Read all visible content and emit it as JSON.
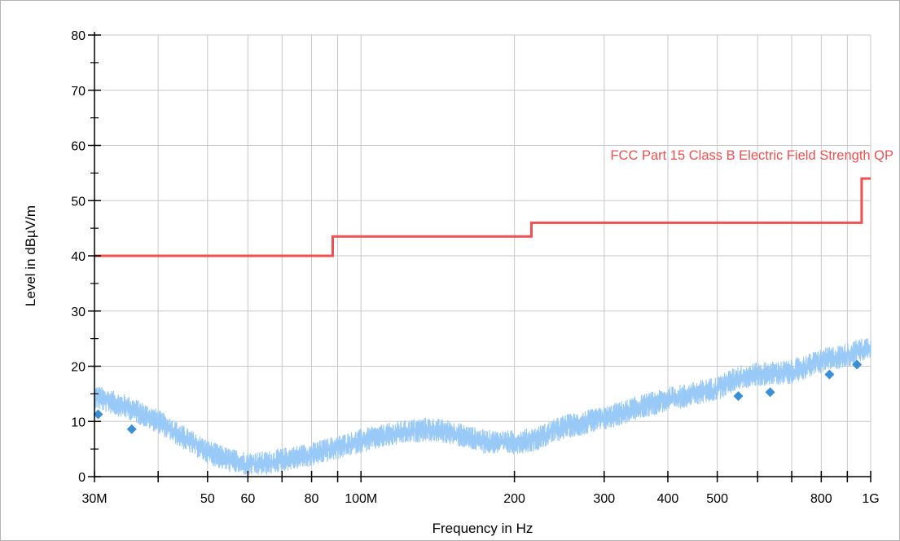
{
  "chart_data": {
    "type": "line",
    "title": "",
    "xlabel": "Frequency in Hz",
    "ylabel": "Level in dBµV/m",
    "xscale": "log",
    "xlim": [
      30000000,
      1000000000
    ],
    "ylim": [
      0,
      80
    ],
    "grid": true,
    "x_ticks": [
      {
        "value": 30000000,
        "label": "30M"
      },
      {
        "value": 50000000,
        "label": "50"
      },
      {
        "value": 60000000,
        "label": "60"
      },
      {
        "value": 80000000,
        "label": "80"
      },
      {
        "value": 100000000,
        "label": "100M"
      },
      {
        "value": 200000000,
        "label": "200"
      },
      {
        "value": 300000000,
        "label": "300"
      },
      {
        "value": 400000000,
        "label": "400"
      },
      {
        "value": 500000000,
        "label": "500"
      },
      {
        "value": 800000000,
        "label": "800"
      },
      {
        "value": 1000000000,
        "label": "1G"
      }
    ],
    "x_grid": [
      30000000,
      40000000,
      50000000,
      60000000,
      70000000,
      80000000,
      90000000,
      100000000,
      200000000,
      300000000,
      400000000,
      500000000,
      600000000,
      700000000,
      800000000,
      900000000,
      1000000000
    ],
    "y_ticks": [
      0,
      10,
      20,
      30,
      40,
      50,
      60,
      70,
      80
    ],
    "y_minor": 5,
    "colors": {
      "limit": "#f05050",
      "trace": "#99c9f7",
      "marker": "#3a8fd6",
      "grid": "#c8c8c8"
    },
    "series": [
      {
        "name": "FCC Part 15 Class B Electric Field Strength QP",
        "kind": "limit",
        "points": [
          [
            30000000,
            40
          ],
          [
            88000000,
            40
          ],
          [
            88000000,
            43.5
          ],
          [
            216000000,
            43.5
          ],
          [
            216000000,
            46
          ],
          [
            960000000,
            46
          ],
          [
            960000000,
            54
          ],
          [
            1000000000,
            54
          ]
        ]
      },
      {
        "kind": "peak-trace",
        "noise": 2.2,
        "points": [
          [
            30000000,
            14.5
          ],
          [
            35000000,
            12.5
          ],
          [
            40000000,
            10
          ],
          [
            45000000,
            7
          ],
          [
            50000000,
            4.5
          ],
          [
            55000000,
            3
          ],
          [
            60000000,
            2.3
          ],
          [
            65000000,
            2.4
          ],
          [
            70000000,
            3
          ],
          [
            80000000,
            4
          ],
          [
            90000000,
            5.3
          ],
          [
            100000000,
            6.5
          ],
          [
            120000000,
            8
          ],
          [
            135000000,
            8.6
          ],
          [
            150000000,
            8
          ],
          [
            175000000,
            6.3
          ],
          [
            200000000,
            6.2
          ],
          [
            220000000,
            6.8
          ],
          [
            250000000,
            9
          ],
          [
            300000000,
            10.5
          ],
          [
            350000000,
            12.5
          ],
          [
            400000000,
            14
          ],
          [
            450000000,
            15
          ],
          [
            500000000,
            16
          ],
          [
            550000000,
            18
          ],
          [
            600000000,
            18.5
          ],
          [
            700000000,
            19
          ],
          [
            800000000,
            21
          ],
          [
            900000000,
            22
          ],
          [
            1000000000,
            23.5
          ]
        ]
      },
      {
        "kind": "qp-markers",
        "points": [
          [
            30500000,
            11.3
          ],
          [
            35500000,
            8.6
          ],
          [
            550000000,
            14.6
          ],
          [
            635000000,
            15.3
          ],
          [
            830000000,
            18.5
          ],
          [
            940000000,
            20.3
          ]
        ]
      }
    ]
  }
}
